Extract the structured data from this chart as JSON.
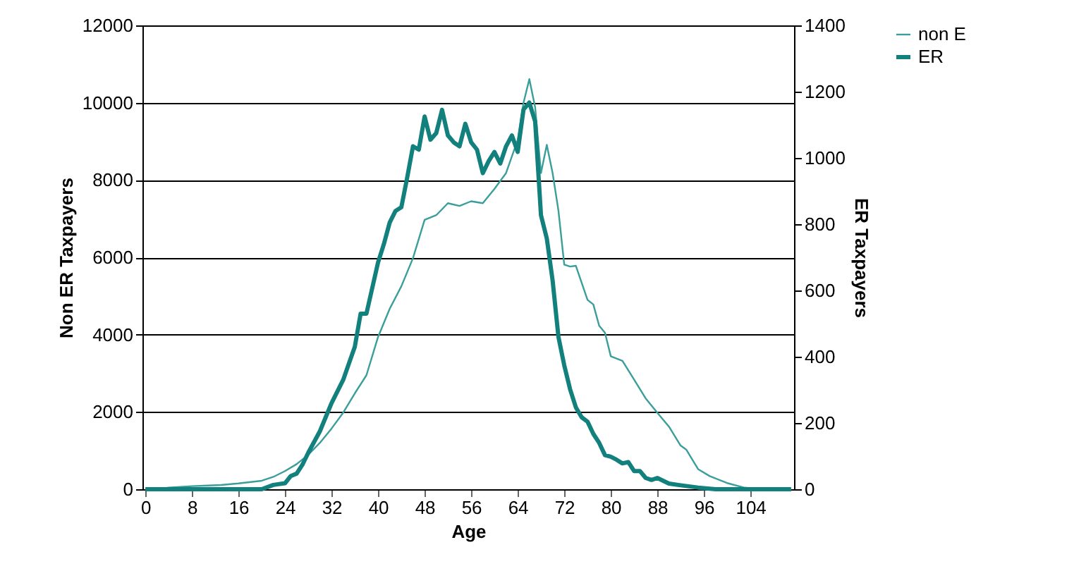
{
  "chart_data": {
    "type": "line",
    "xlabel": "Age",
    "ylabel": "Non ER Taxpayers",
    "y2label": "ER Taxpayers",
    "xlim": [
      -0.5,
      111.5
    ],
    "xticks": [
      0,
      8,
      16,
      24,
      32,
      40,
      48,
      56,
      64,
      72,
      80,
      88,
      96,
      104
    ],
    "ylim": [
      0,
      12000
    ],
    "yticks": [
      0,
      2000,
      4000,
      6000,
      8000,
      10000,
      12000
    ],
    "y2lim": [
      0,
      1400
    ],
    "y2ticks": [
      0,
      200,
      400,
      600,
      800,
      1000,
      1200,
      1400
    ],
    "grid": "y",
    "legend": "right",
    "marker": "none",
    "line_style": "solid",
    "series": [
      {
        "name": "non E",
        "color": "#3a9e9a",
        "x": [
          0,
          2,
          4,
          6,
          8,
          10,
          13,
          16,
          20,
          22,
          24,
          26,
          28,
          30,
          32,
          34,
          36,
          38,
          40,
          42,
          44,
          46,
          48,
          50,
          52,
          54,
          56,
          58,
          60,
          62,
          64,
          65,
          66,
          67,
          68,
          69,
          70,
          71,
          72,
          73,
          74,
          76,
          77,
          78,
          79,
          80,
          82,
          84,
          86,
          88,
          90,
          92,
          93,
          95,
          97,
          100,
          103,
          106,
          111
        ],
        "values": [
          0,
          0,
          40,
          60,
          80,
          90,
          110,
          150,
          220,
          320,
          470,
          650,
          890,
          1200,
          1570,
          1980,
          2480,
          2950,
          3940,
          4670,
          5250,
          5980,
          6970,
          7090,
          7400,
          7330,
          7450,
          7400,
          7770,
          8180,
          9040,
          10000,
          10610,
          9880,
          8180,
          8910,
          8180,
          7210,
          5810,
          5760,
          5780,
          4900,
          4780,
          4230,
          4050,
          3440,
          3320,
          2840,
          2350,
          1980,
          1620,
          1130,
          1020,
          520,
          340,
          160,
          40,
          0,
          0
        ]
      },
      {
        "name": "ER",
        "color": "#12807c",
        "axis": "y2",
        "x": [
          0,
          18,
          20,
          22,
          24,
          25,
          26,
          27,
          28,
          30,
          32,
          34,
          36,
          37,
          38,
          40,
          41,
          42,
          43,
          44,
          45,
          46,
          47,
          48,
          49,
          50,
          51,
          52,
          53,
          54,
          55,
          56,
          57,
          58,
          59,
          60,
          61,
          62,
          63,
          64,
          65,
          66,
          67,
          68,
          69,
          70,
          71,
          72,
          73,
          74,
          75,
          76,
          77,
          78,
          79,
          80,
          81,
          82,
          83,
          84,
          85,
          86,
          87,
          88,
          90,
          92,
          95,
          98,
          111
        ],
        "values": [
          0,
          0,
          0,
          13,
          18,
          40,
          47,
          74,
          110,
          175,
          260,
          330,
          430,
          530,
          530,
          685,
          740,
          805,
          840,
          851,
          940,
          1035,
          1025,
          1125,
          1055,
          1075,
          1145,
          1068,
          1047,
          1035,
          1103,
          1047,
          1025,
          954,
          990,
          1018,
          983,
          1035,
          1068,
          1018,
          1146,
          1167,
          1110,
          827,
          757,
          630,
          460,
          374,
          302,
          247,
          217,
          204,
          167,
          140,
          103,
          98,
          89,
          78,
          82,
          55,
          55,
          34,
          28,
          34,
          17,
          12,
          5,
          0,
          0
        ]
      }
    ]
  }
}
